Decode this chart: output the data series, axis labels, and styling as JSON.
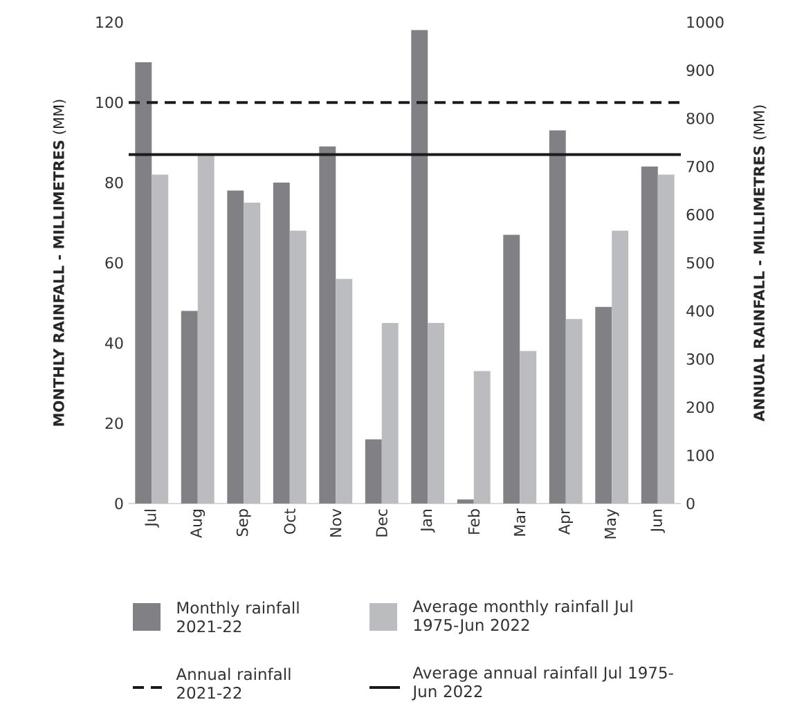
{
  "chart_data": {
    "type": "bar",
    "ylabel": "**MONTHLY RAINFALL - MILLIMETRES** (MM)",
    "y2label": "**ANNUAL RAINFALL - MILLIMETRES** (MM)",
    "categories": [
      "Jul",
      "Aug",
      "Sep",
      "Oct",
      "Nov",
      "Dec",
      "Jan",
      "Feb",
      "Mar",
      "Apr",
      "May",
      "Jun"
    ],
    "series": [
      {
        "name": "Monthly rainfall 2021-22",
        "color": "#808085",
        "values": [
          110,
          48,
          78,
          80,
          89,
          16,
          118,
          1,
          67,
          93,
          49,
          84
        ]
      },
      {
        "name": "Average monthly rainfall Jul 1975-Jun 2022",
        "color": "#bbbcc0",
        "values": [
          82,
          87,
          75,
          68,
          56,
          45,
          45,
          33,
          38,
          46,
          68,
          82
        ]
      }
    ],
    "ylim": [
      0,
      120
    ],
    "yticks": [
      0,
      20,
      40,
      60,
      80,
      100,
      120
    ],
    "y2lim": [
      0,
      1000
    ],
    "y2ticks": [
      0,
      100,
      200,
      300,
      400,
      500,
      600,
      700,
      800,
      900,
      1000
    ],
    "ref_lines": [
      {
        "axis": "y2",
        "value": 833,
        "label": "Annual rainfall 2021-22",
        "color": "#1a1a1a",
        "line_style": "dashed"
      },
      {
        "axis": "y2",
        "value": 725,
        "label": "Average annual rainfall Jul 1975-Jun 2022",
        "color": "#1a1a1a",
        "line_style": "solid"
      }
    ],
    "legend": "bottom"
  }
}
